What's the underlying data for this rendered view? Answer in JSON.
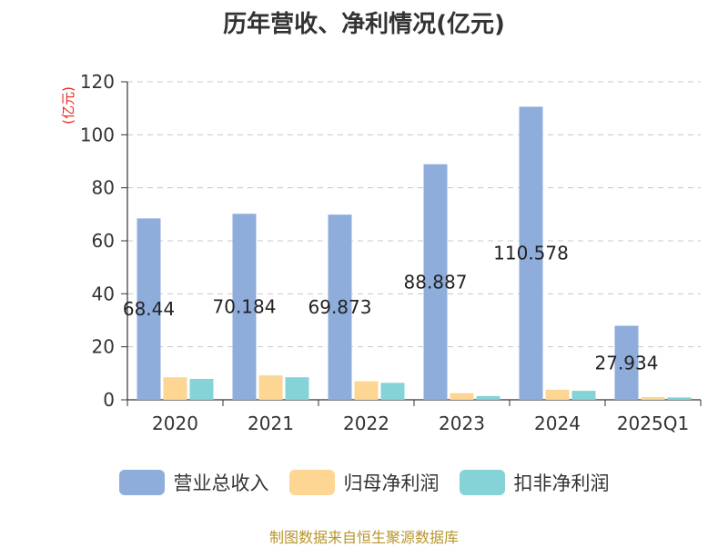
{
  "title": "历年营收、净利情况(亿元)",
  "source": "制图数据来自恒生聚源数据库",
  "chart_data": {
    "type": "bar",
    "title": "历年营收、净利情况(亿元)",
    "ylabel": "(亿元)",
    "ylim": [
      0,
      120
    ],
    "yticks": [
      0,
      20,
      40,
      60,
      80,
      100,
      120
    ],
    "grid": true,
    "legend_position": "bottom",
    "categories": [
      "2020",
      "2021",
      "2022",
      "2023",
      "2024",
      "2025Q1"
    ],
    "series": [
      {
        "name": "营业总收入",
        "color": "#8eaddb",
        "values": [
          68.44,
          70.184,
          69.873,
          88.887,
          110.578,
          27.934
        ],
        "labels": [
          "68.44",
          "70.184",
          "69.873",
          "88.887",
          "110.578",
          "27.934"
        ]
      },
      {
        "name": "归母净利润",
        "color": "#fdd693",
        "values": [
          8.5,
          9.2,
          7.0,
          2.5,
          3.8,
          1.0
        ]
      },
      {
        "name": "扣非净利润",
        "color": "#86d3d7",
        "values": [
          7.9,
          8.5,
          6.4,
          1.4,
          3.4,
          0.9
        ]
      }
    ]
  }
}
